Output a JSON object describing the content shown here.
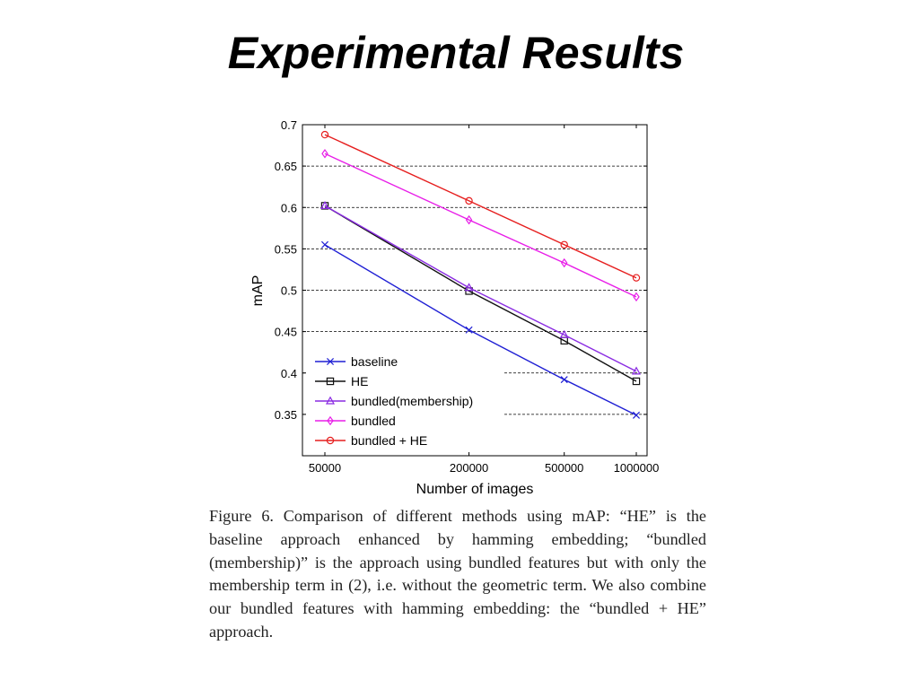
{
  "slide": {
    "title": "Experimental Results",
    "caption": "Figure 6. Comparison of different methods using mAP: “HE” is the baseline approach enhanced by hamming embedding; “bundled (membership)” is the approach using bundled features but with only the membership term in (2), i.e. without the geometric term.  We also combine our bundled features with hamming embedding: the “bundled + HE” approach."
  },
  "chart_data": {
    "type": "line",
    "xlabel": "Number of images",
    "ylabel": "mAP",
    "x": [
      50000,
      200000,
      500000,
      1000000
    ],
    "x_tick_labels": [
      "50000",
      "200000",
      "500000",
      "1000000"
    ],
    "x_scale": "log",
    "ylim": [
      0.3,
      0.7
    ],
    "y_ticks": [
      0.35,
      0.4,
      0.45,
      0.5,
      0.55,
      0.6,
      0.65,
      0.7
    ],
    "y_tick_labels": [
      "0.35",
      "0.4",
      "0.45",
      "0.5",
      "0.55",
      "0.6",
      "0.65",
      "0.7"
    ],
    "grid": "horizontal dashed",
    "legend_position": "bottom-left",
    "series": [
      {
        "name": "baseline",
        "color": "#1f1fd4",
        "marker": "x",
        "values": [
          0.555,
          0.452,
          0.392,
          0.349
        ]
      },
      {
        "name": "HE",
        "color": "#111111",
        "marker": "square",
        "values": [
          0.602,
          0.499,
          0.439,
          0.39
        ]
      },
      {
        "name": "bundled(membership)",
        "color": "#8a2be2",
        "marker": "triangle",
        "values": [
          0.602,
          0.503,
          0.446,
          0.402
        ]
      },
      {
        "name": "bundled",
        "color": "#e81ee8",
        "marker": "diamond",
        "values": [
          0.665,
          0.585,
          0.533,
          0.492
        ]
      },
      {
        "name": "bundled + HE",
        "color": "#e61e1e",
        "marker": "circle",
        "values": [
          0.688,
          0.608,
          0.555,
          0.515
        ]
      }
    ]
  }
}
